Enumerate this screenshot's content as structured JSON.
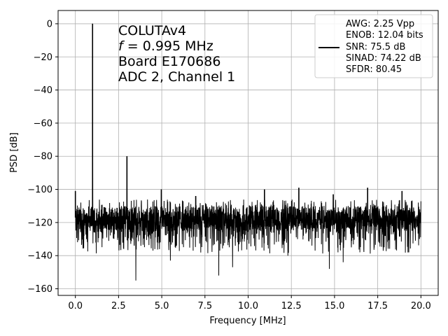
{
  "chart_data": {
    "type": "line",
    "xlabel": "Frequency [MHz]",
    "ylabel": "PSD [dB]",
    "xlim": [
      -1.0,
      21.0
    ],
    "ylim": [
      -164,
      8
    ],
    "xticks": [
      0.0,
      2.5,
      5.0,
      7.5,
      10.0,
      12.5,
      15.0,
      17.5,
      20.0
    ],
    "xtick_labels": [
      "0.0",
      "2.5",
      "5.0",
      "7.5",
      "10.0",
      "12.5",
      "15.0",
      "17.5",
      "20.0"
    ],
    "yticks": [
      0,
      -20,
      -40,
      -60,
      -80,
      -100,
      -120,
      -140,
      -160
    ],
    "ytick_labels": [
      "0",
      "−20",
      "−40",
      "−60",
      "−80",
      "−100",
      "−120",
      "−140",
      "−160"
    ],
    "grid": true,
    "line_color": "#000000",
    "noise_floor_db": -117,
    "freq_range_mhz": [
      0.0,
      20.0
    ],
    "peaks": [
      {
        "x": 0.0,
        "y": -101
      },
      {
        "x": 0.995,
        "y": 0
      },
      {
        "x": 2.985,
        "y": -80
      },
      {
        "x": 4.975,
        "y": -100
      },
      {
        "x": 6.965,
        "y": -104
      },
      {
        "x": 10.945,
        "y": -100
      },
      {
        "x": 12.935,
        "y": -99
      },
      {
        "x": 14.925,
        "y": -103
      },
      {
        "x": 16.915,
        "y": -99
      },
      {
        "x": 18.905,
        "y": -101
      }
    ],
    "dips": [
      {
        "x": 3.5,
        "y": -155
      },
      {
        "x": 5.5,
        "y": -143
      },
      {
        "x": 8.3,
        "y": -152
      },
      {
        "x": 9.1,
        "y": -147
      },
      {
        "x": 14.7,
        "y": -148
      },
      {
        "x": 15.5,
        "y": -144
      },
      {
        "x": 12.3,
        "y": -140
      },
      {
        "x": 19.3,
        "y": -138
      }
    ],
    "annotation_lines": [
      "COLUTAv4",
      "f = 0.995 MHz",
      "Board E170686",
      "ADC 2, Channel 1"
    ],
    "legend_placement": "top-right",
    "legend_lines": [
      "AWG: 2.25 Vpp",
      "ENOB: 12.04 bits",
      "SNR: 75.5 dB",
      "SINAD: 74.22 dB",
      "SFDR: 80.45"
    ]
  }
}
